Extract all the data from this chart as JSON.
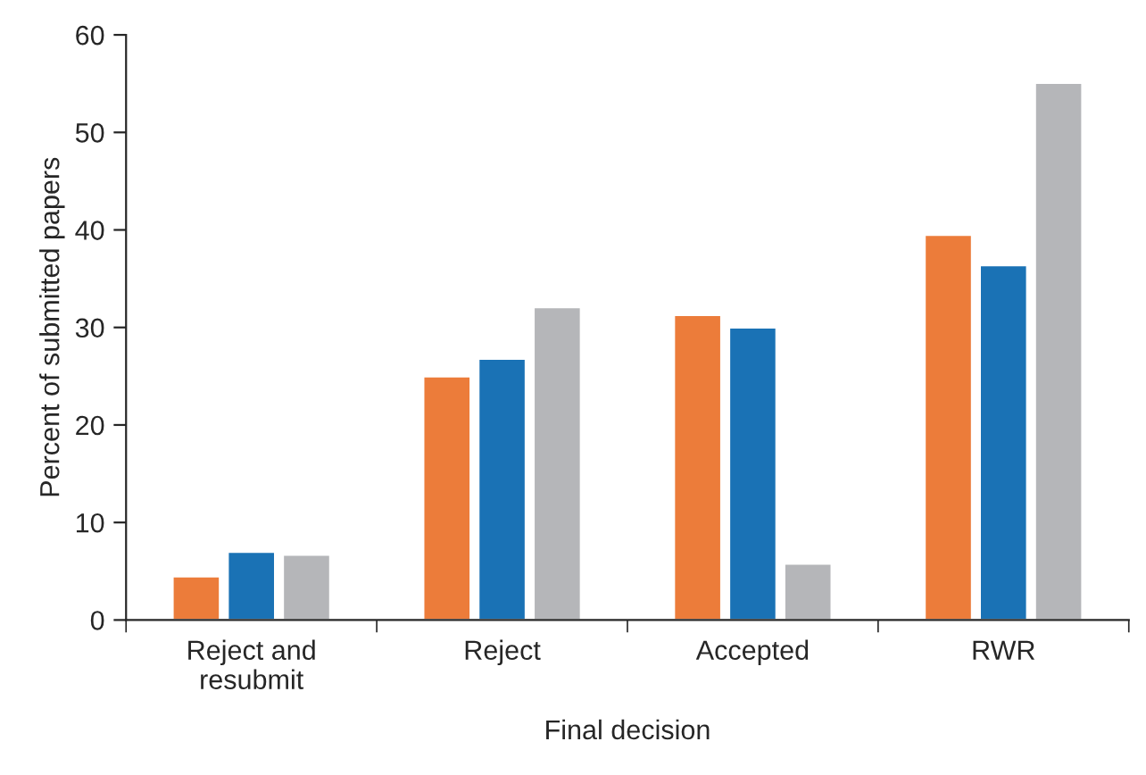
{
  "chart_data": {
    "type": "bar",
    "xlabel": "Final decision",
    "ylabel": "Percent of submitted papers",
    "categories": [
      "Reject and\nresubmit",
      "Reject",
      "Accepted",
      "RWR"
    ],
    "series": [
      {
        "color": "#ec7c3a",
        "values": [
          4.5,
          25,
          31.3,
          39.5
        ]
      },
      {
        "color": "#1a72b5",
        "values": [
          7,
          26.8,
          30,
          36.4
        ]
      },
      {
        "color": "#b5b6b9",
        "values": [
          6.7,
          32.1,
          5.8,
          55.1
        ]
      }
    ],
    "ylim": [
      0,
      60
    ],
    "yticks": [
      0,
      10,
      20,
      30,
      40,
      50,
      60
    ],
    "grid": false,
    "legend": false
  }
}
